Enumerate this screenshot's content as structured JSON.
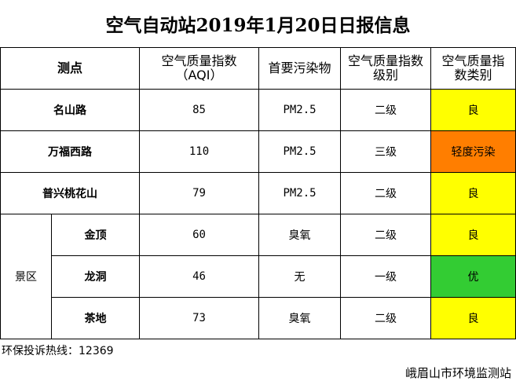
{
  "title": "空气自动站2019年1月20日日报信息",
  "headers": {
    "site": "测点",
    "aqi_line1": "空气质量指数",
    "aqi_line2": "（AQI）",
    "pollutant": "首要污染物",
    "level_line1": "空气质量指数",
    "level_line2": "级别",
    "category_line1": "空气质量指",
    "category_line2": "数类别"
  },
  "scenic_label": "景区",
  "rows": [
    {
      "site": "名山路",
      "aqi": "85",
      "pollutant": "PM2.5",
      "level": "二级",
      "category": "良",
      "color": "#ffff00"
    },
    {
      "site": "万福西路",
      "aqi": "110",
      "pollutant": "PM2.5",
      "level": "三级",
      "category": "轻度污染",
      "color": "#ff7e00"
    },
    {
      "site": "普兴桃花山",
      "aqi": "79",
      "pollutant": "PM2.5",
      "level": "二级",
      "category": "良",
      "color": "#ffff00"
    },
    {
      "site": "金顶",
      "aqi": "60",
      "pollutant": "臭氧",
      "level": "二级",
      "category": "良",
      "color": "#ffff00"
    },
    {
      "site": "龙洞",
      "aqi": "46",
      "pollutant": "无",
      "level": "一级",
      "category": "优",
      "color": "#33cc33"
    },
    {
      "site": "茶地",
      "aqi": "73",
      "pollutant": "臭氧",
      "level": "二级",
      "category": "良",
      "color": "#ffff00"
    }
  ],
  "hotline": "环保投诉热线：12369",
  "agency": "峨眉山市环境监测站"
}
